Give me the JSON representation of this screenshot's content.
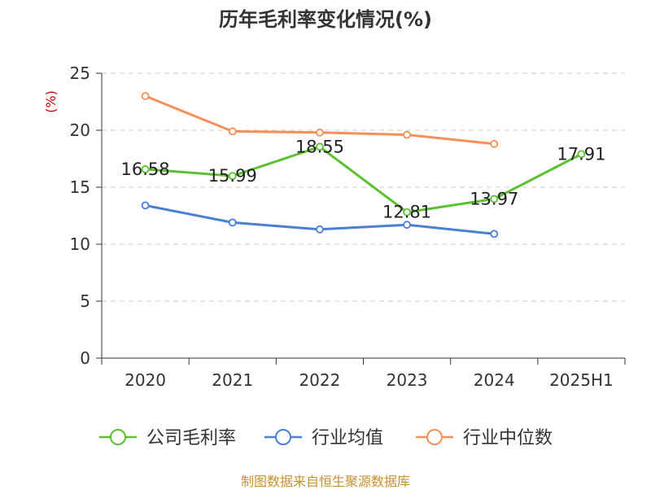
{
  "chart_data": {
    "type": "line",
    "title": "历年毛利率变化情况(%)",
    "ylabel": "(%)",
    "categories": [
      "2020",
      "2021",
      "2022",
      "2023",
      "2024",
      "2025H1"
    ],
    "ylim": [
      0,
      25
    ],
    "yticks": [
      0,
      5,
      10,
      15,
      20,
      25
    ],
    "grid": true,
    "legend_position": "bottom",
    "series": [
      {
        "name": "公司毛利率",
        "color": "#5cc032",
        "values": [
          16.58,
          15.99,
          18.55,
          12.81,
          13.97,
          17.91
        ],
        "labels": [
          "16.58",
          "15.99",
          "18.55",
          "12.81",
          "13.97",
          "17.91"
        ]
      },
      {
        "name": "行业均值",
        "color": "#4a7fd4",
        "values": [
          13.4,
          11.9,
          11.3,
          11.7,
          10.9,
          null
        ]
      },
      {
        "name": "行业中位数",
        "color": "#f39159",
        "values": [
          23.0,
          19.9,
          19.8,
          19.6,
          18.8,
          null
        ]
      }
    ]
  },
  "source": "制图数据来自恒生聚源数据库"
}
